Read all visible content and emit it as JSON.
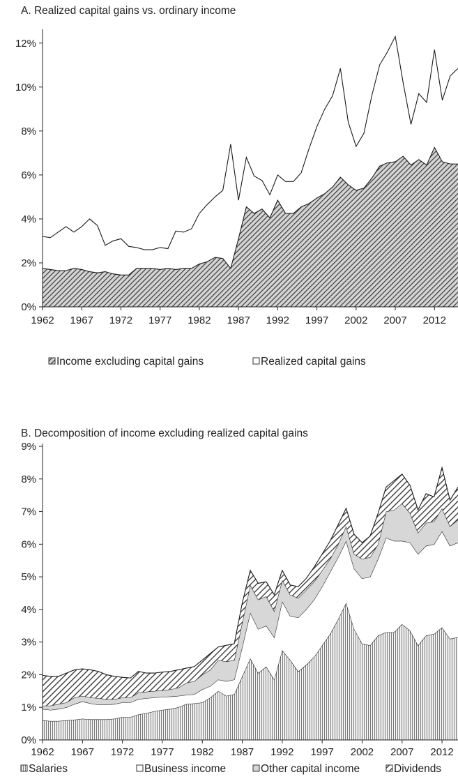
{
  "chart_data": [
    {
      "type": "area",
      "title": "A.  Realized capital gains vs. ordinary income",
      "xlabel": "",
      "ylabel": "",
      "ylim": [
        0,
        12.5
      ],
      "y_ticks": [
        "0%",
        "2%",
        "4%",
        "6%",
        "8%",
        "10%",
        "12%"
      ],
      "x_ticks": [
        "1962",
        "1967",
        "1972",
        "1977",
        "1982",
        "1987",
        "1992",
        "1997",
        "2002",
        "2007",
        "2012"
      ],
      "grid": false,
      "legend_position": "bottom",
      "x": [
        1962,
        1963,
        1964,
        1965,
        1966,
        1967,
        1968,
        1969,
        1970,
        1971,
        1972,
        1973,
        1974,
        1975,
        1976,
        1977,
        1978,
        1979,
        1980,
        1981,
        1982,
        1983,
        1984,
        1985,
        1986,
        1987,
        1988,
        1989,
        1990,
        1991,
        1992,
        1993,
        1994,
        1995,
        1996,
        1997,
        1998,
        1999,
        2000,
        2001,
        2002,
        2003,
        2004,
        2005,
        2006,
        2007,
        2008,
        2009,
        2010,
        2011,
        2012,
        2013,
        2014,
        2015
      ],
      "series": [
        {
          "name": "Income excluding capital gains",
          "pattern": "diagonal-hatch",
          "values": [
            1.75,
            1.7,
            1.65,
            1.65,
            1.75,
            1.7,
            1.6,
            1.55,
            1.6,
            1.5,
            1.45,
            1.45,
            1.75,
            1.75,
            1.75,
            1.7,
            1.75,
            1.7,
            1.75,
            1.75,
            1.95,
            2.05,
            2.25,
            2.2,
            1.75,
            3.1,
            4.55,
            4.25,
            4.45,
            4.05,
            4.85,
            4.25,
            4.25,
            4.55,
            4.7,
            4.95,
            5.15,
            5.45,
            5.9,
            5.55,
            5.3,
            5.4,
            5.85,
            6.4,
            6.55,
            6.6,
            6.85,
            6.45,
            6.7,
            6.45,
            7.25,
            6.6,
            6.5,
            6.5
          ]
        },
        {
          "name": "Realized capital gains",
          "pattern": "none",
          "total_values": [
            3.2,
            3.15,
            3.4,
            3.65,
            3.4,
            3.65,
            4.0,
            3.7,
            2.8,
            3.0,
            3.1,
            2.75,
            2.7,
            2.6,
            2.6,
            2.7,
            2.65,
            3.45,
            3.4,
            3.55,
            4.25,
            4.65,
            5.0,
            5.3,
            7.4,
            4.85,
            6.8,
            5.95,
            5.75,
            5.1,
            6.0,
            5.7,
            5.7,
            6.1,
            7.2,
            8.2,
            9.0,
            9.6,
            10.85,
            8.4,
            7.3,
            7.9,
            9.6,
            11.0,
            11.6,
            12.3,
            10.2,
            8.3,
            9.7,
            9.3,
            11.7,
            9.4,
            10.5,
            10.85
          ]
        }
      ]
    },
    {
      "type": "area",
      "title": "B. Decomposition of income excluding realized capital gains",
      "xlabel": "",
      "ylabel": "",
      "ylim": [
        0,
        9
      ],
      "y_ticks": [
        "0%",
        "1%",
        "2%",
        "3%",
        "4%",
        "5%",
        "6%",
        "7%",
        "8%",
        "9%"
      ],
      "x_ticks": [
        "1962",
        "1967",
        "1972",
        "1977",
        "1982",
        "1987",
        "1992",
        "1997",
        "2002",
        "2007",
        "2012"
      ],
      "grid": false,
      "legend_position": "bottom",
      "x": [
        1962,
        1963,
        1964,
        1965,
        1966,
        1967,
        1968,
        1969,
        1970,
        1971,
        1972,
        1973,
        1974,
        1975,
        1976,
        1977,
        1978,
        1979,
        1980,
        1981,
        1982,
        1983,
        1984,
        1985,
        1986,
        1987,
        1988,
        1989,
        1990,
        1991,
        1992,
        1993,
        1994,
        1995,
        1996,
        1997,
        1998,
        1999,
        2000,
        2001,
        2002,
        2003,
        2004,
        2005,
        2006,
        2007,
        2008,
        2009,
        2010,
        2011,
        2012,
        2013,
        2014
      ],
      "series": [
        {
          "name": "Salaries",
          "pattern": "vertical-lines",
          "cumulative_top": [
            0.6,
            0.58,
            0.58,
            0.6,
            0.62,
            0.65,
            0.63,
            0.63,
            0.63,
            0.65,
            0.7,
            0.7,
            0.78,
            0.82,
            0.88,
            0.92,
            0.95,
            1.0,
            1.1,
            1.12,
            1.15,
            1.3,
            1.5,
            1.35,
            1.4,
            1.95,
            2.5,
            2.05,
            2.25,
            1.85,
            2.75,
            2.45,
            2.1,
            2.3,
            2.55,
            2.9,
            3.25,
            3.7,
            4.2,
            3.4,
            2.95,
            2.9,
            3.2,
            3.3,
            3.3,
            3.55,
            3.35,
            2.9,
            3.2,
            3.25,
            3.45,
            3.1,
            3.15
          ]
        },
        {
          "name": "Business income",
          "pattern": "none",
          "cumulative_top": [
            0.95,
            0.92,
            0.95,
            1.0,
            1.1,
            1.18,
            1.12,
            1.08,
            1.08,
            1.1,
            1.15,
            1.15,
            1.25,
            1.28,
            1.3,
            1.32,
            1.33,
            1.35,
            1.38,
            1.4,
            1.55,
            1.65,
            1.85,
            1.8,
            1.85,
            2.85,
            3.9,
            3.4,
            3.5,
            3.15,
            4.25,
            3.8,
            3.75,
            4.0,
            4.3,
            4.7,
            5.15,
            5.6,
            6.1,
            5.25,
            4.95,
            5.0,
            5.55,
            6.2,
            6.1,
            6.1,
            6.05,
            5.7,
            5.95,
            6.0,
            6.4,
            5.95,
            6.05
          ]
        },
        {
          "name": "Other capital income",
          "pattern": "light-fill",
          "cumulative_top": [
            1.05,
            1.05,
            1.1,
            1.15,
            1.3,
            1.35,
            1.3,
            1.28,
            1.25,
            1.25,
            1.3,
            1.3,
            1.45,
            1.48,
            1.5,
            1.52,
            1.55,
            1.6,
            1.75,
            1.8,
            2.0,
            2.15,
            2.45,
            2.4,
            2.45,
            3.6,
            4.75,
            4.3,
            4.4,
            3.95,
            4.9,
            4.45,
            4.35,
            4.6,
            4.85,
            5.2,
            5.55,
            6.0,
            6.55,
            5.7,
            5.55,
            5.6,
            6.0,
            7.0,
            7.05,
            7.25,
            6.95,
            6.35,
            6.65,
            6.7,
            7.1,
            6.55,
            6.75
          ]
        },
        {
          "name": "Dividends",
          "pattern": "diagonal-hatch",
          "cumulative_top": [
            1.98,
            1.95,
            1.95,
            2.05,
            2.15,
            2.18,
            2.15,
            2.1,
            2.0,
            1.95,
            1.92,
            1.9,
            2.1,
            2.05,
            2.05,
            2.08,
            2.1,
            2.15,
            2.2,
            2.25,
            2.45,
            2.65,
            2.85,
            2.9,
            2.95,
            4.2,
            5.2,
            4.8,
            4.85,
            4.45,
            5.2,
            4.75,
            4.7,
            4.95,
            5.3,
            5.7,
            6.1,
            6.6,
            7.1,
            6.3,
            6.05,
            6.25,
            6.95,
            7.75,
            7.95,
            8.15,
            7.8,
            7.05,
            7.55,
            7.45,
            8.35,
            7.35,
            7.75
          ]
        }
      ]
    }
  ]
}
